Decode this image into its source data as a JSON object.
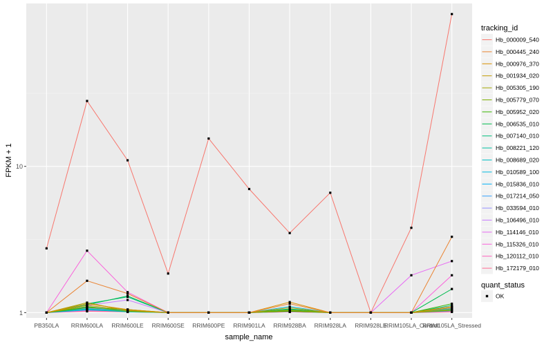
{
  "chart_data": {
    "type": "line",
    "title": "",
    "xlabel": "sample_name",
    "ylabel": "FPKM + 1",
    "y_scale": "log10",
    "ylim": [
      0.92,
      130
    ],
    "yticks": [
      1,
      10
    ],
    "ytick_labels": [
      "1",
      "10"
    ],
    "grid": true,
    "categories": [
      "PB350LA",
      "RRIM600LA",
      "RRIM600LE",
      "RRIM600SE",
      "RRIM600PE",
      "RRIM901LA",
      "RRIM928BA",
      "RRIM928LA",
      "RRIM928LE",
      "RRIM105LA_Control",
      "RRIM105LA_Stressed"
    ],
    "tick_labels": [
      "PB350LA",
      "RRIM600LA",
      "RRIM600LE",
      "RRIM600SE",
      "RRIM600PE",
      "RRIM901LA",
      "RRIM928BA",
      "RRIM928LA",
      "RRIM928LE",
      "RRIM105LA_Control",
      "RRIM105LA_Stressed"
    ],
    "series": [
      {
        "name": "Hb_000009_540",
        "color": "#F8766D",
        "values": [
          2.75,
          28,
          11,
          1.85,
          15.5,
          7,
          3.5,
          6.6,
          1,
          3.8,
          110
        ]
      },
      {
        "name": "Hb_000445_240",
        "color": "#EA8331",
        "values": [
          1,
          1.65,
          1.35,
          1,
          1,
          1,
          1.15,
          1,
          1,
          1,
          3.3
        ]
      },
      {
        "name": "Hb_000976_370",
        "color": "#D89000",
        "values": [
          1,
          1.15,
          1.05,
          1,
          1,
          1,
          1.18,
          1,
          1,
          1,
          1.1
        ]
      },
      {
        "name": "Hb_001934_020",
        "color": "#C09B00",
        "values": [
          1,
          1.12,
          1.04,
          1,
          1,
          1,
          1.08,
          1,
          1,
          1,
          1.08
        ]
      },
      {
        "name": "Hb_005305_190",
        "color": "#A3A500",
        "values": [
          1,
          1.17,
          1.03,
          1,
          1,
          1,
          1.04,
          1,
          1,
          1,
          1.05
        ]
      },
      {
        "name": "Hb_005779_070",
        "color": "#7CAE00",
        "values": [
          1,
          1.1,
          1.02,
          1,
          1,
          1,
          1.03,
          1,
          1,
          1,
          1.04
        ]
      },
      {
        "name": "Hb_005952_020",
        "color": "#39B600",
        "values": [
          1,
          1.08,
          1.05,
          1,
          1,
          1,
          1.02,
          1,
          1,
          1,
          1.15
        ]
      },
      {
        "name": "Hb_006535_010",
        "color": "#00BB4E",
        "values": [
          1,
          1.13,
          1.3,
          1,
          1,
          1,
          1.06,
          1,
          1,
          1,
          1.45
        ]
      },
      {
        "name": "Hb_007140_010",
        "color": "#00BF7D",
        "values": [
          1,
          1.15,
          1.28,
          1,
          1,
          1,
          1.05,
          1,
          1,
          1,
          1.12
        ]
      },
      {
        "name": "Hb_008221_120",
        "color": "#00C1A3",
        "values": [
          1,
          1.06,
          1.02,
          1,
          1,
          1,
          1.02,
          1,
          1,
          1,
          1.03
        ]
      },
      {
        "name": "Hb_008689_020",
        "color": "#00BFC4",
        "values": [
          1,
          1.05,
          1.01,
          1,
          1,
          1,
          1.05,
          1,
          1,
          1,
          1.06
        ]
      },
      {
        "name": "Hb_010589_100",
        "color": "#00BAE0",
        "values": [
          1,
          1.1,
          1.03,
          1,
          1,
          1,
          1.1,
          1,
          1,
          1,
          1.08
        ]
      },
      {
        "name": "Hb_015836_010",
        "color": "#00B0F6",
        "values": [
          1,
          1.09,
          1.02,
          1,
          1,
          1,
          1.03,
          1,
          1,
          1,
          1.05
        ]
      },
      {
        "name": "Hb_017214_050",
        "color": "#35A2FF",
        "values": [
          1,
          1.04,
          1.02,
          1,
          1,
          1,
          1.02,
          1,
          1,
          1,
          1.04
        ]
      },
      {
        "name": "Hb_033594_010",
        "color": "#9590FF",
        "values": [
          1,
          1.07,
          1.03,
          1,
          1,
          1,
          1.04,
          1,
          1,
          1,
          1.07
        ]
      },
      {
        "name": "Hb_106496_010",
        "color": "#C77CFF",
        "values": [
          1,
          1.12,
          1.22,
          1,
          1,
          1,
          1.03,
          1,
          1,
          1,
          1.1
        ]
      },
      {
        "name": "Hb_114146_010",
        "color": "#E76BF3",
        "values": [
          1,
          1.05,
          1.03,
          1,
          1,
          1,
          1.02,
          1,
          1,
          1.8,
          2.25
        ]
      },
      {
        "name": "Hb_115326_010",
        "color": "#FA62DB",
        "values": [
          1,
          2.65,
          1.38,
          1,
          1,
          1,
          1.02,
          1,
          1,
          1,
          1.8
        ]
      },
      {
        "name": "Hb_120112_010",
        "color": "#FF62BC",
        "values": [
          1,
          1.03,
          1.02,
          1,
          1,
          1,
          1.01,
          1,
          1,
          1,
          1.02
        ]
      },
      {
        "name": "Hb_172179_010",
        "color": "#FF6C91",
        "values": [
          1,
          1.02,
          1.01,
          1,
          1,
          1,
          1.01,
          1,
          1,
          1,
          1.01
        ]
      }
    ],
    "legend_title": "tracking_id",
    "legend_position": "right",
    "shape_legend": {
      "title": "quant_status",
      "items": [
        "OK"
      ]
    }
  }
}
